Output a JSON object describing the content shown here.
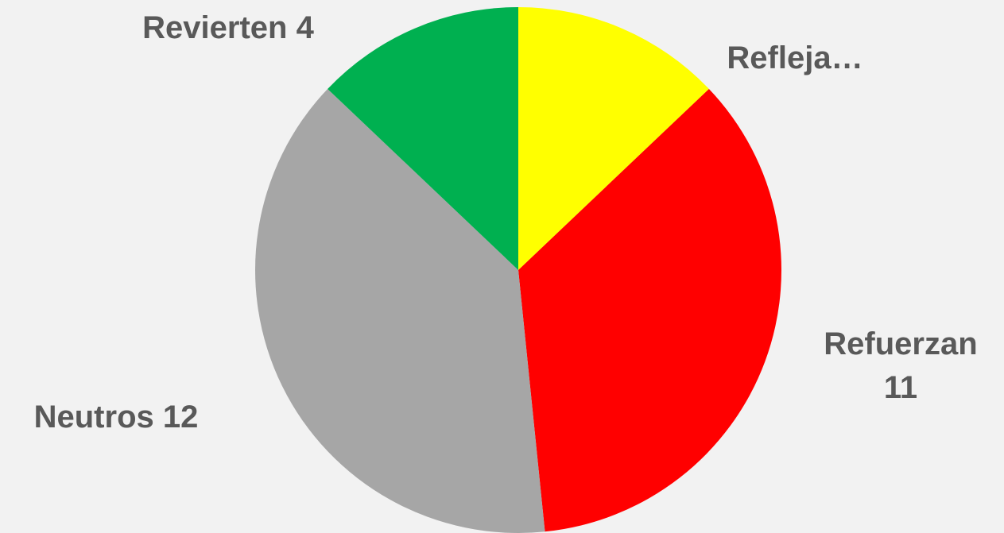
{
  "chart_data": {
    "type": "pie",
    "categories": [
      "Refleja…",
      "Refuerzan",
      "Neutros",
      "Revierten"
    ],
    "values": [
      4,
      11,
      12,
      4
    ],
    "show_value": [
      false,
      true,
      true,
      true
    ],
    "colors": [
      "#ffff00",
      "#ff0000",
      "#a6a6a6",
      "#00b050"
    ],
    "start_angle": 0,
    "direction": "clockwise"
  }
}
